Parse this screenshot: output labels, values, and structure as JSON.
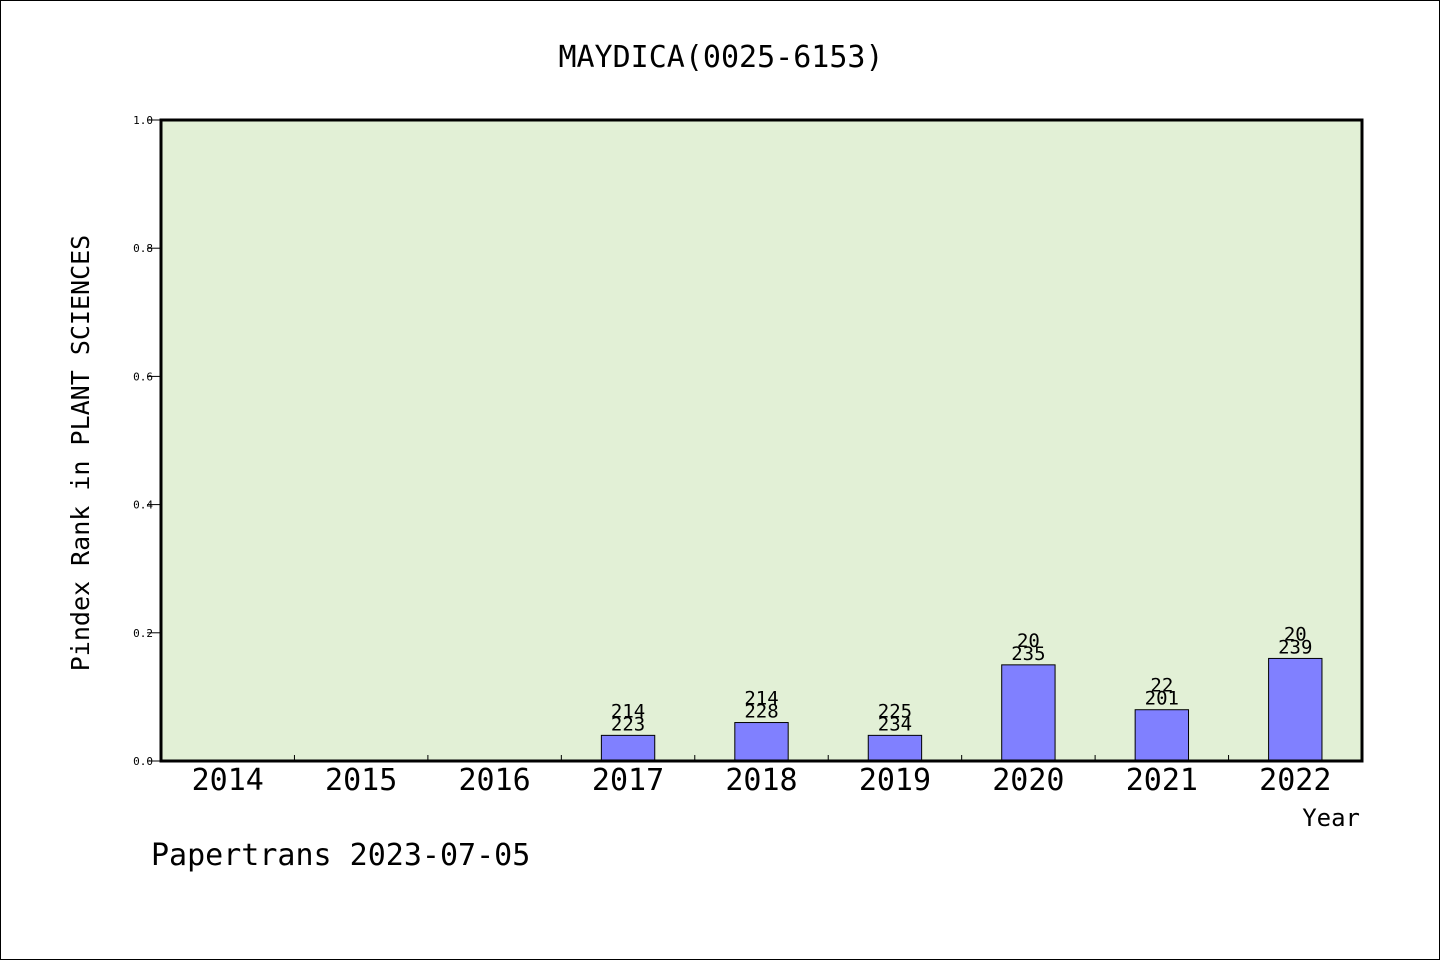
{
  "chart_data": {
    "type": "bar",
    "title": "MAYDICA(0025-6153)",
    "xlabel": "Year",
    "ylabel": "Pindex Rank in PLANT SCIENCES",
    "ylim": [
      0,
      1.0
    ],
    "yticks": [
      "0.0",
      "0.2",
      "0.4",
      "0.6",
      "0.8",
      "1.0"
    ],
    "grid": false,
    "categories": [
      "2014",
      "2015",
      "2016",
      "2017",
      "2018",
      "2019",
      "2020",
      "2021",
      "2022"
    ],
    "values": [
      0,
      0,
      0,
      0.04,
      0.06,
      0.04,
      0.15,
      0.08,
      0.16
    ],
    "labels_top": [
      "",
      "",
      "",
      "214",
      "214",
      "225",
      "20",
      "22",
      "20"
    ],
    "labels_bottom": [
      "",
      "",
      "",
      "223",
      "228",
      "234",
      "235",
      "201",
      "239"
    ],
    "colors": {
      "plot_bg": "#e2f0d6",
      "bar": "#8080ff",
      "bar_edge": "#000000"
    }
  },
  "footer": "Papertrans 2023-07-05"
}
